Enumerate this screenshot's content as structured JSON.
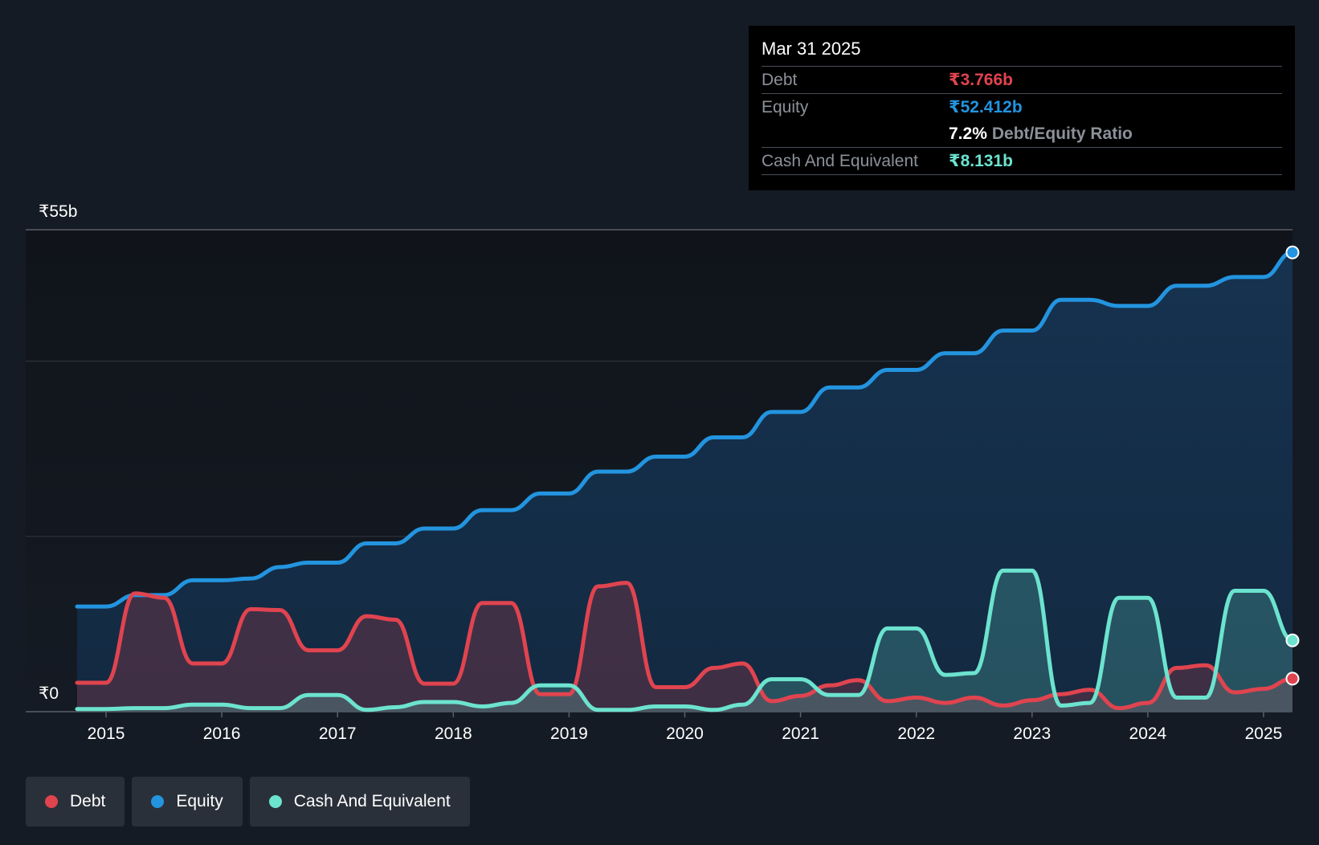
{
  "chart_data": {
    "type": "area",
    "ylim": [
      0,
      55
    ],
    "y_unit": "₹b",
    "y_tick_labels": [
      {
        "value": 55,
        "label": "₹55b"
      },
      {
        "value": 0,
        "label": "₹0"
      }
    ],
    "x_ticks": [
      {
        "x": 2015.0,
        "label": "2015"
      },
      {
        "x": 2016.0,
        "label": "2016"
      },
      {
        "x": 2017.0,
        "label": "2017"
      },
      {
        "x": 2018.0,
        "label": "2018"
      },
      {
        "x": 2019.0,
        "label": "2019"
      },
      {
        "x": 2020.0,
        "label": "2020"
      },
      {
        "x": 2021.0,
        "label": "2021"
      },
      {
        "x": 2022.0,
        "label": "2022"
      },
      {
        "x": 2023.0,
        "label": "2023"
      },
      {
        "x": 2024.0,
        "label": "2024"
      },
      {
        "x": 2025.0,
        "label": "2025"
      }
    ],
    "xlim": [
      2014.75,
      2025.25
    ],
    "grid": true,
    "colors": {
      "debt": "#e0444f",
      "equity": "#2394df",
      "cash": "#6ce3cf"
    },
    "series": [
      {
        "key": "equity",
        "name": "Equity",
        "points": [
          [
            2014.75,
            12.0
          ],
          [
            2015.0,
            12.0
          ],
          [
            2015.25,
            13.3
          ],
          [
            2015.5,
            13.3
          ],
          [
            2015.75,
            15.0
          ],
          [
            2016.0,
            15.0
          ],
          [
            2016.25,
            15.2
          ],
          [
            2016.5,
            16.5
          ],
          [
            2016.75,
            17.0
          ],
          [
            2017.0,
            17.0
          ],
          [
            2017.25,
            19.2
          ],
          [
            2017.5,
            19.2
          ],
          [
            2017.75,
            20.9
          ],
          [
            2018.0,
            20.9
          ],
          [
            2018.25,
            23.0
          ],
          [
            2018.5,
            23.0
          ],
          [
            2018.75,
            24.9
          ],
          [
            2019.0,
            24.9
          ],
          [
            2019.25,
            27.4
          ],
          [
            2019.5,
            27.4
          ],
          [
            2019.75,
            29.1
          ],
          [
            2020.0,
            29.1
          ],
          [
            2020.25,
            31.3
          ],
          [
            2020.5,
            31.3
          ],
          [
            2020.75,
            34.2
          ],
          [
            2021.0,
            34.2
          ],
          [
            2021.25,
            37.0
          ],
          [
            2021.5,
            37.0
          ],
          [
            2021.75,
            39.0
          ],
          [
            2022.0,
            39.0
          ],
          [
            2022.25,
            40.9
          ],
          [
            2022.5,
            40.9
          ],
          [
            2022.75,
            43.5
          ],
          [
            2023.0,
            43.5
          ],
          [
            2023.25,
            47.0
          ],
          [
            2023.5,
            47.0
          ],
          [
            2023.75,
            46.3
          ],
          [
            2024.0,
            46.3
          ],
          [
            2024.25,
            48.6
          ],
          [
            2024.5,
            48.6
          ],
          [
            2024.75,
            49.6
          ],
          [
            2025.0,
            49.6
          ],
          [
            2025.25,
            52.412
          ]
        ]
      },
      {
        "key": "debt",
        "name": "Debt",
        "points": [
          [
            2014.75,
            3.3
          ],
          [
            2015.0,
            3.3
          ],
          [
            2015.25,
            13.5
          ],
          [
            2015.5,
            13.0
          ],
          [
            2015.75,
            5.5
          ],
          [
            2016.0,
            5.5
          ],
          [
            2016.25,
            11.7
          ],
          [
            2016.5,
            11.6
          ],
          [
            2016.75,
            7.0
          ],
          [
            2017.0,
            7.0
          ],
          [
            2017.25,
            10.9
          ],
          [
            2017.5,
            10.5
          ],
          [
            2017.75,
            3.2
          ],
          [
            2018.0,
            3.2
          ],
          [
            2018.25,
            12.4
          ],
          [
            2018.5,
            12.4
          ],
          [
            2018.75,
            2.0
          ],
          [
            2019.0,
            2.0
          ],
          [
            2019.25,
            14.3
          ],
          [
            2019.5,
            14.7
          ],
          [
            2019.75,
            2.8
          ],
          [
            2020.0,
            2.8
          ],
          [
            2020.25,
            5.0
          ],
          [
            2020.5,
            5.5
          ],
          [
            2020.75,
            1.2
          ],
          [
            2021.0,
            1.8
          ],
          [
            2021.25,
            3.0
          ],
          [
            2021.5,
            3.6
          ],
          [
            2021.75,
            1.2
          ],
          [
            2022.0,
            1.6
          ],
          [
            2022.25,
            1.0
          ],
          [
            2022.5,
            1.6
          ],
          [
            2022.75,
            0.7
          ],
          [
            2023.0,
            1.3
          ],
          [
            2023.25,
            2.0
          ],
          [
            2023.5,
            2.5
          ],
          [
            2023.75,
            0.4
          ],
          [
            2024.0,
            1.0
          ],
          [
            2024.25,
            5.0
          ],
          [
            2024.5,
            5.3
          ],
          [
            2024.75,
            2.2
          ],
          [
            2025.0,
            2.6
          ],
          [
            2025.25,
            3.766
          ]
        ]
      },
      {
        "key": "cash",
        "name": "Cash And Equivalent",
        "points": [
          [
            2014.75,
            0.3
          ],
          [
            2015.0,
            0.3
          ],
          [
            2015.25,
            0.4
          ],
          [
            2015.5,
            0.4
          ],
          [
            2015.75,
            0.8
          ],
          [
            2016.0,
            0.8
          ],
          [
            2016.25,
            0.4
          ],
          [
            2016.5,
            0.4
          ],
          [
            2016.75,
            1.9
          ],
          [
            2017.0,
            1.9
          ],
          [
            2017.25,
            0.2
          ],
          [
            2017.5,
            0.5
          ],
          [
            2017.75,
            1.1
          ],
          [
            2018.0,
            1.1
          ],
          [
            2018.25,
            0.6
          ],
          [
            2018.5,
            1.0
          ],
          [
            2018.75,
            3.0
          ],
          [
            2019.0,
            3.0
          ],
          [
            2019.25,
            0.2
          ],
          [
            2019.5,
            0.2
          ],
          [
            2019.75,
            0.6
          ],
          [
            2020.0,
            0.6
          ],
          [
            2020.25,
            0.2
          ],
          [
            2020.5,
            0.8
          ],
          [
            2020.75,
            3.7
          ],
          [
            2021.0,
            3.7
          ],
          [
            2021.25,
            1.9
          ],
          [
            2021.5,
            1.9
          ],
          [
            2021.75,
            9.5
          ],
          [
            2022.0,
            9.5
          ],
          [
            2022.25,
            4.2
          ],
          [
            2022.5,
            4.4
          ],
          [
            2022.75,
            16.1
          ],
          [
            2023.0,
            16.1
          ],
          [
            2023.25,
            0.7
          ],
          [
            2023.5,
            1.0
          ],
          [
            2023.75,
            13.0
          ],
          [
            2024.0,
            13.0
          ],
          [
            2024.25,
            1.6
          ],
          [
            2024.5,
            1.6
          ],
          [
            2024.75,
            13.8
          ],
          [
            2025.0,
            13.8
          ],
          [
            2025.25,
            8.131
          ]
        ]
      }
    ]
  },
  "tooltip": {
    "date": "Mar 31 2025",
    "debt_label": "Debt",
    "debt_value": "₹3.766b",
    "equity_label": "Equity",
    "equity_value": "₹52.412b",
    "ratio_value": "7.2%",
    "ratio_label": "Debt/Equity Ratio",
    "cash_label": "Cash And Equivalent",
    "cash_value": "₹8.131b"
  },
  "legend": [
    {
      "label": "Debt",
      "color": "#e0444f"
    },
    {
      "label": "Equity",
      "color": "#2394df"
    },
    {
      "label": "Cash And Equivalent",
      "color": "#6ce3cf"
    }
  ]
}
